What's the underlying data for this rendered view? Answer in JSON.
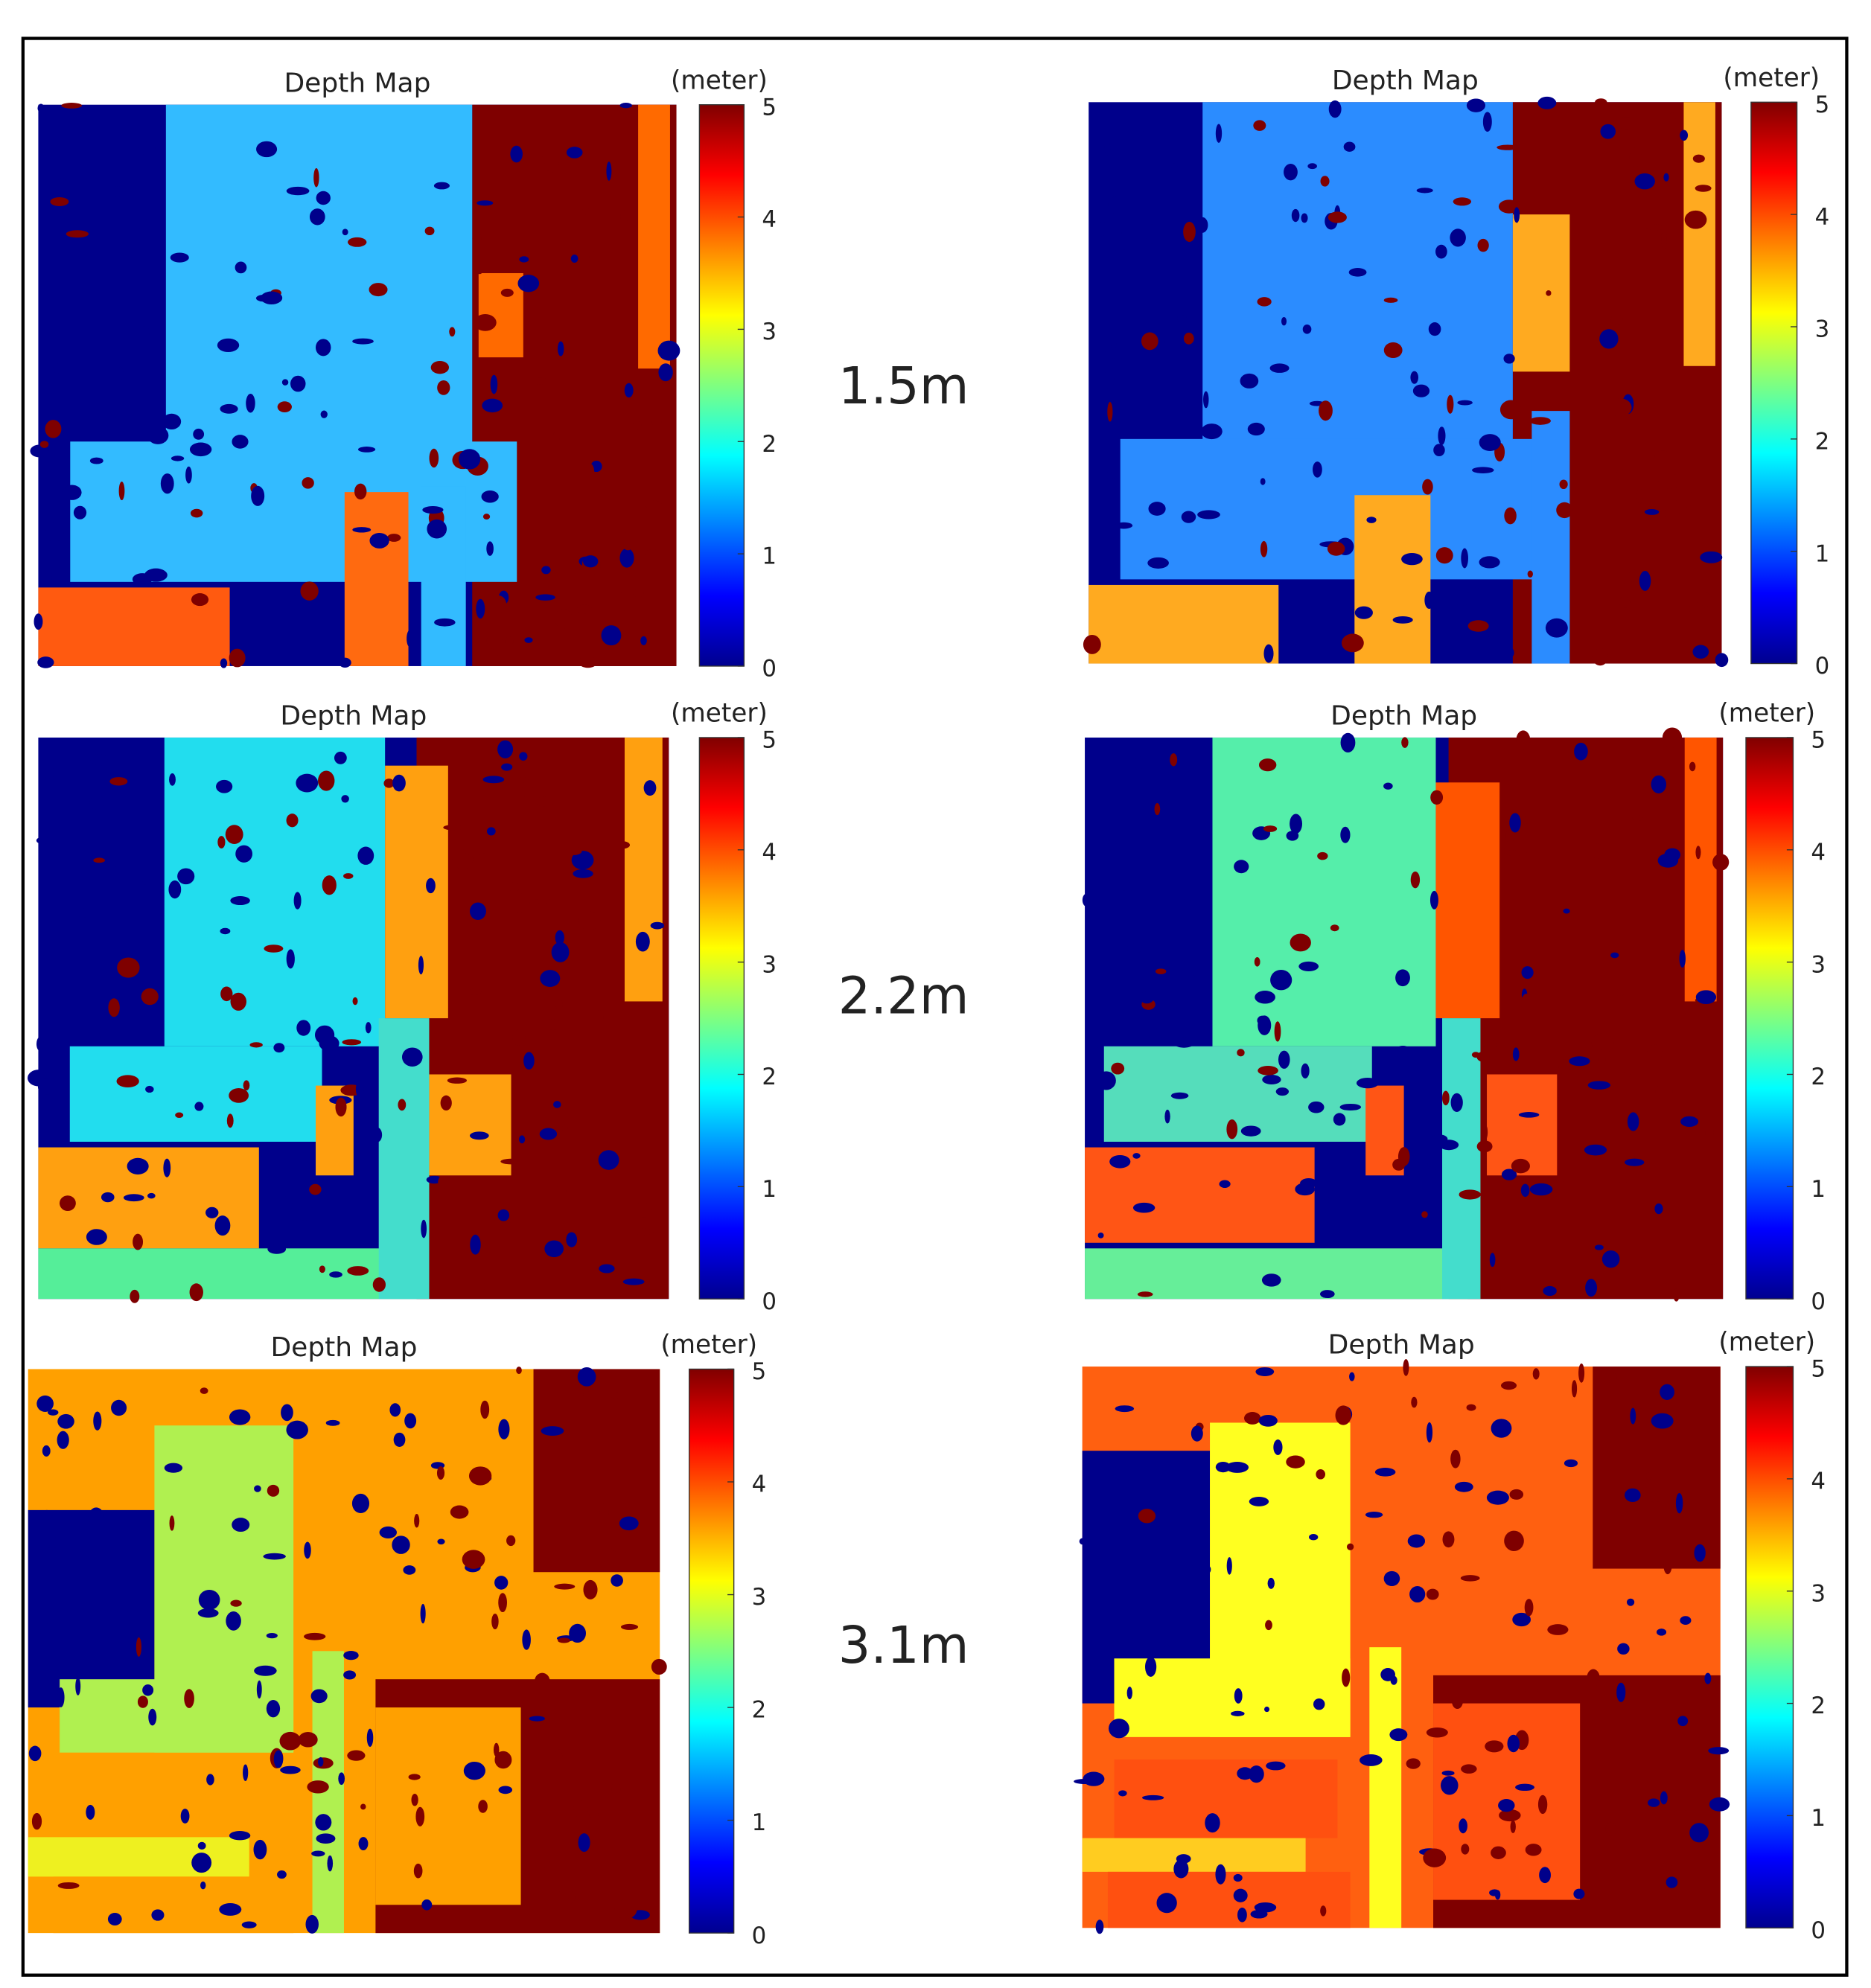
{
  "row_labels": [
    "1.5m",
    "2.2m",
    "3.1m"
  ],
  "panels": [
    {
      "title": "Depth Map",
      "unit": "(meter)",
      "colorbar": {
        "lim": [
          0,
          5
        ],
        "ticks": [
          0,
          1,
          2,
          3,
          4,
          5
        ]
      }
    },
    {
      "title": "Depth Map",
      "unit": "(meter)",
      "colorbar": {
        "lim": [
          0,
          5
        ],
        "ticks": [
          0,
          1,
          2,
          3,
          4,
          5
        ]
      }
    },
    {
      "title": "Depth Map",
      "unit": "(meter)",
      "colorbar": {
        "lim": [
          0,
          5
        ],
        "ticks": [
          0,
          1,
          2,
          3,
          4,
          5
        ]
      }
    },
    {
      "title": "Depth Map",
      "unit": "(meter)",
      "colorbar": {
        "lim": [
          0,
          5
        ],
        "ticks": [
          0,
          1,
          2,
          3,
          4,
          5
        ]
      }
    },
    {
      "title": "Depth Map",
      "unit": "(meter)",
      "colorbar": {
        "lim": [
          0,
          5
        ],
        "ticks": [
          0,
          1,
          2,
          3,
          4,
          5
        ]
      }
    },
    {
      "title": "Depth Map",
      "unit": "(meter)",
      "colorbar": {
        "lim": [
          0,
          5
        ],
        "ticks": [
          0,
          1,
          2,
          3,
          4,
          5
        ]
      }
    }
  ]
}
